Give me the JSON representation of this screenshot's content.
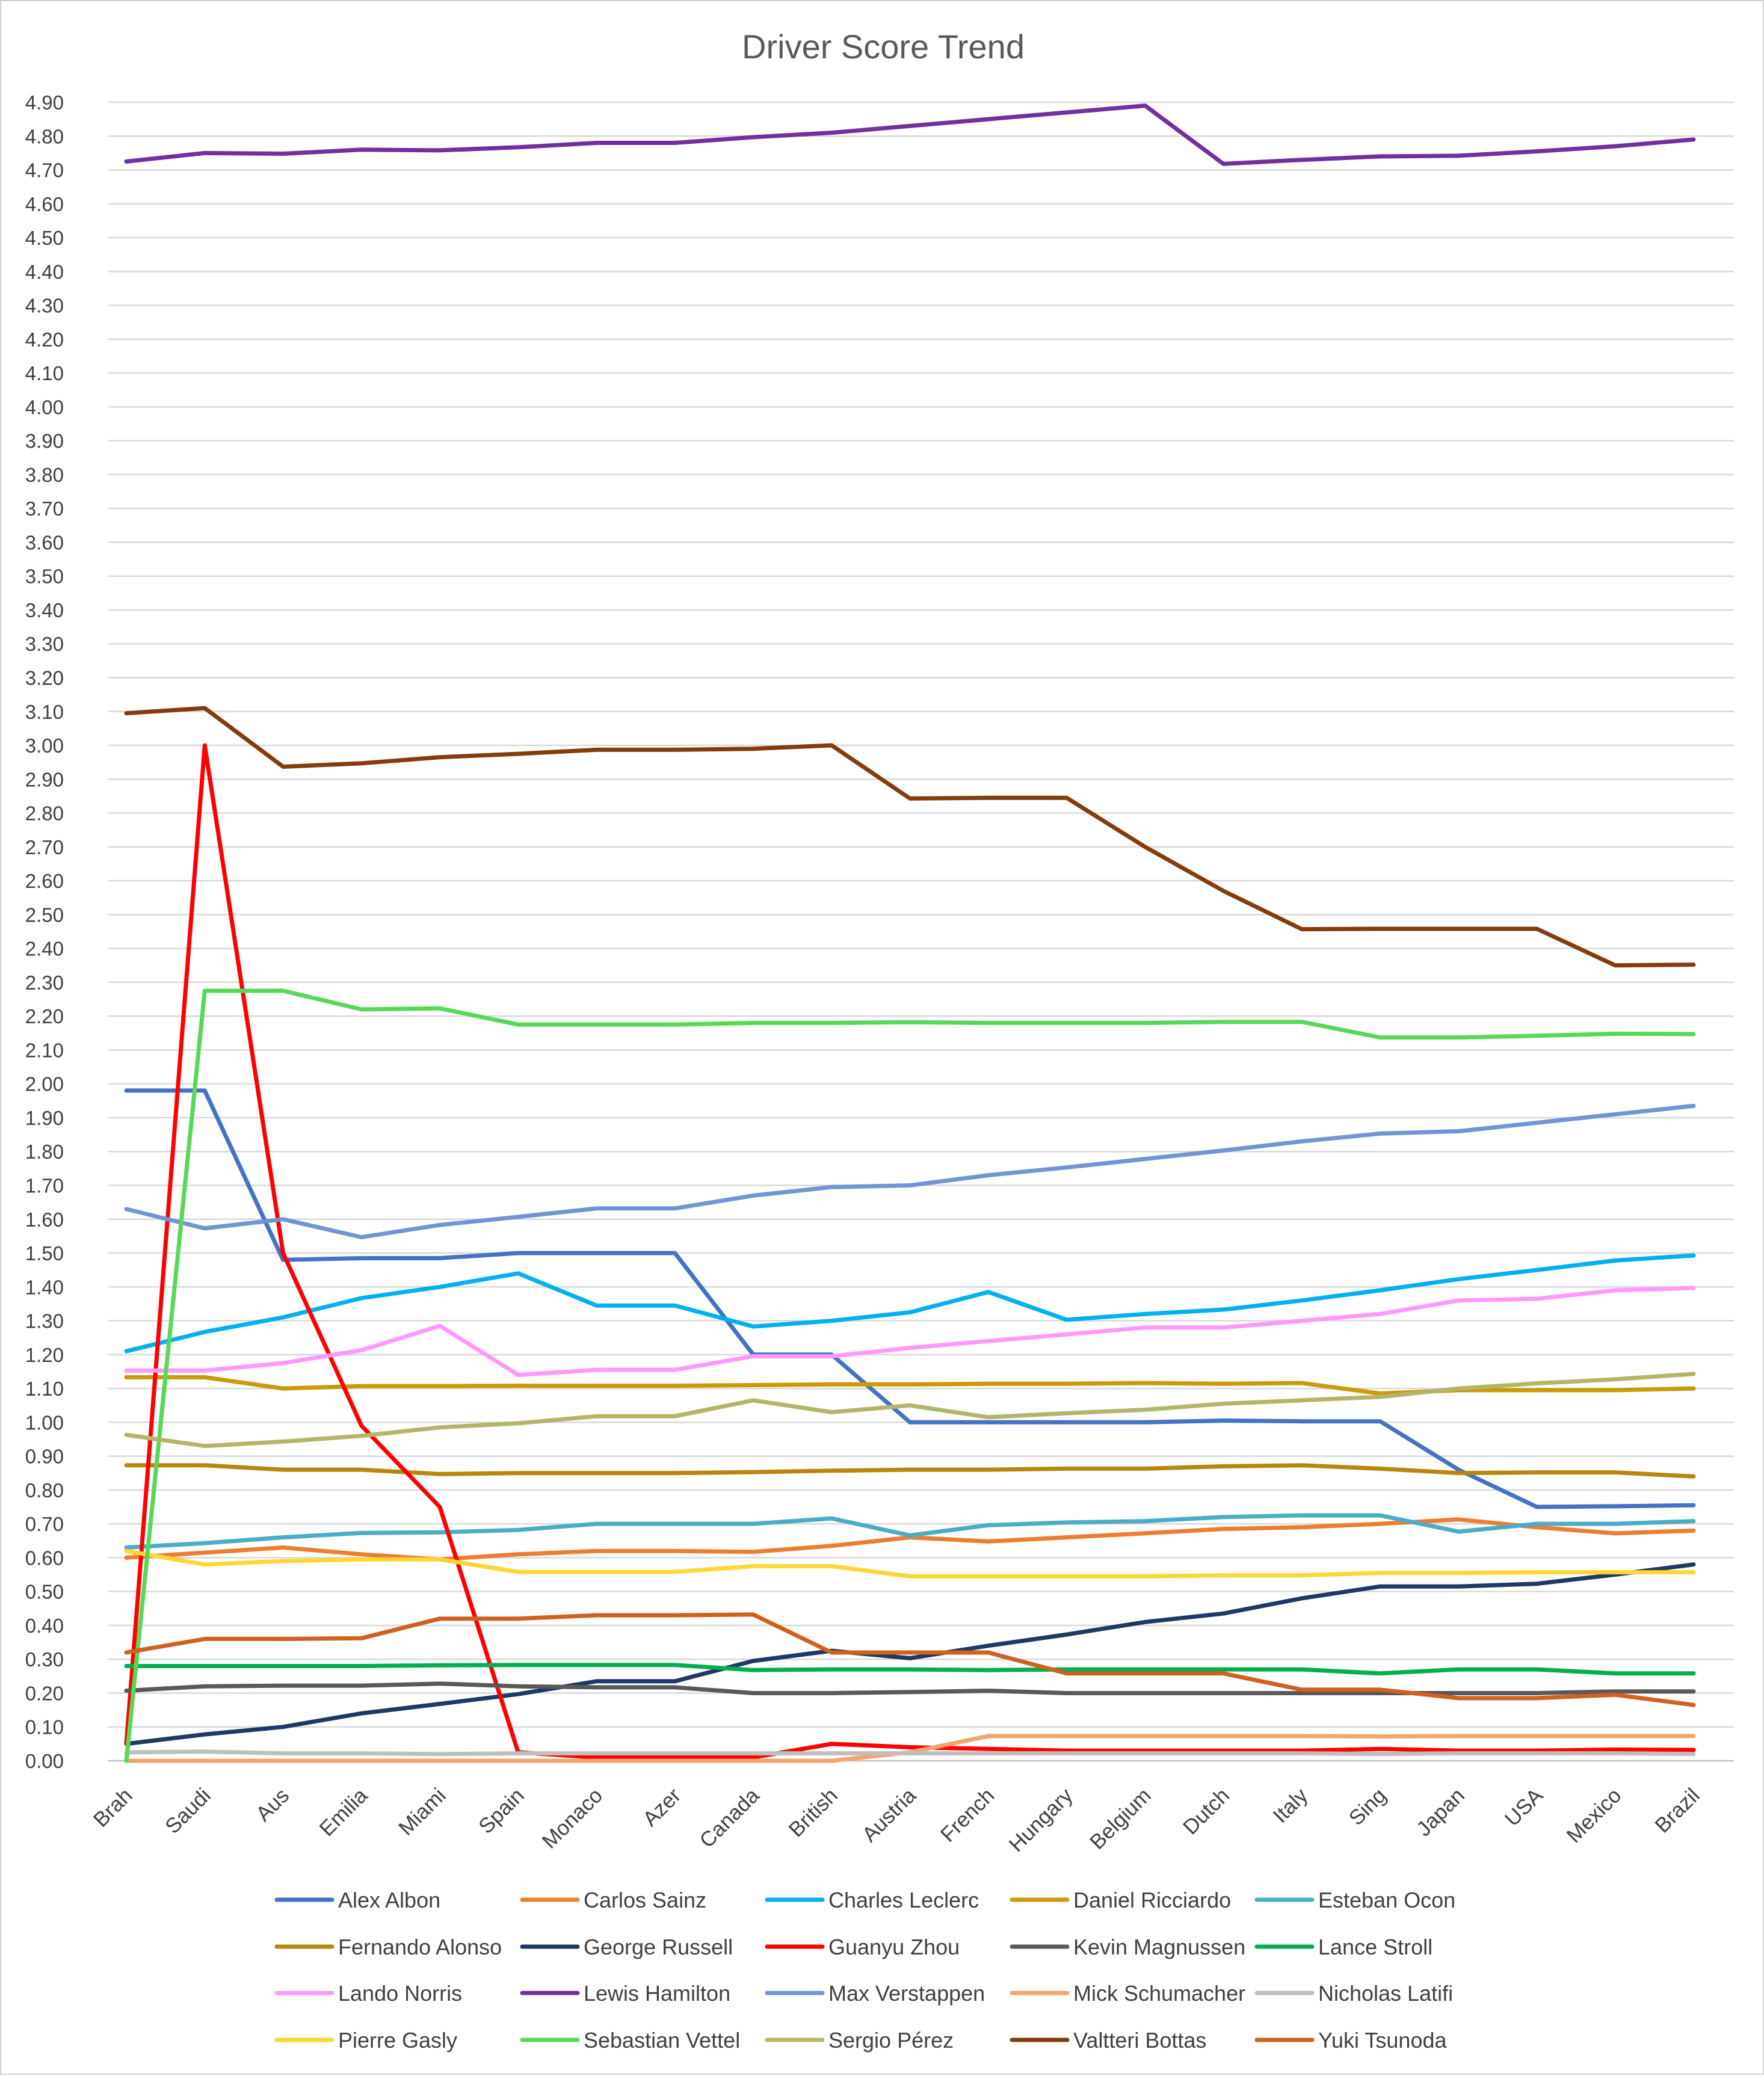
{
  "chart_data": {
    "type": "line",
    "title": "Driver Score Trend",
    "xlabel": "",
    "ylabel": "",
    "ylim": [
      0,
      4.9
    ],
    "ytick_step": 0.1,
    "ytick_format": "2 decimals",
    "grid": "horizontal",
    "legend_position": "bottom",
    "categories": [
      "Brah",
      "Saudi",
      "Aus",
      "Emilia",
      "Miami",
      "Spain",
      "Monaco",
      "Azer",
      "Canada",
      "British",
      "Austria",
      "French",
      "Hungary",
      "Belgium",
      "Dutch",
      "Italy",
      "Sing",
      "Japan",
      "USA",
      "Mexico",
      "Brazil"
    ],
    "series": [
      {
        "name": "Alex Albon",
        "color": "#4472c4",
        "values": [
          1.98,
          1.98,
          1.48,
          1.485,
          1.485,
          1.5,
          1.5,
          1.5,
          1.2,
          1.2,
          1.0,
          1.0,
          1.0,
          1.0,
          1.005,
          1.003,
          1.003,
          0.86,
          0.75,
          0.752,
          0.755
        ]
      },
      {
        "name": "Carlos Sainz",
        "color": "#ed7d31",
        "values": [
          0.6,
          0.615,
          0.63,
          0.61,
          0.595,
          0.61,
          0.62,
          0.62,
          0.617,
          0.635,
          0.66,
          0.648,
          0.66,
          0.672,
          0.685,
          0.69,
          0.7,
          0.713,
          0.69,
          0.672,
          0.68
        ]
      },
      {
        "name": "Charles Leclerc",
        "color": "#00b0f0",
        "values": [
          1.21,
          1.267,
          1.31,
          1.367,
          1.4,
          1.44,
          1.345,
          1.345,
          1.283,
          1.3,
          1.325,
          1.385,
          1.303,
          1.32,
          1.333,
          1.36,
          1.39,
          1.423,
          1.45,
          1.478,
          1.493
        ]
      },
      {
        "name": "Daniel Ricciardo",
        "color": "#cc9a06",
        "values": [
          1.133,
          1.133,
          1.1,
          1.107,
          1.107,
          1.108,
          1.108,
          1.108,
          1.11,
          1.112,
          1.112,
          1.114,
          1.114,
          1.116,
          1.114,
          1.116,
          1.085,
          1.095,
          1.095,
          1.095,
          1.1
        ]
      },
      {
        "name": "Esteban Ocon",
        "color": "#4bacc6",
        "values": [
          0.63,
          0.643,
          0.66,
          0.673,
          0.675,
          0.682,
          0.7,
          0.7,
          0.7,
          0.716,
          0.666,
          0.696,
          0.704,
          0.708,
          0.72,
          0.725,
          0.725,
          0.677,
          0.7,
          0.7,
          0.708
        ]
      },
      {
        "name": "Fernando Alonso",
        "color": "#b8860b",
        "values": [
          0.873,
          0.873,
          0.86,
          0.86,
          0.847,
          0.85,
          0.85,
          0.85,
          0.853,
          0.857,
          0.86,
          0.86,
          0.863,
          0.863,
          0.87,
          0.873,
          0.863,
          0.85,
          0.852,
          0.852,
          0.84
        ]
      },
      {
        "name": "George Russell",
        "color": "#1f3864",
        "values": [
          0.05,
          0.078,
          0.1,
          0.14,
          0.168,
          0.197,
          0.235,
          0.235,
          0.295,
          0.325,
          0.303,
          0.34,
          0.373,
          0.41,
          0.435,
          0.48,
          0.515,
          0.515,
          0.523,
          0.55,
          0.58
        ]
      },
      {
        "name": "Guanyu Zhou",
        "color": "#ff0000",
        "values": [
          0.05,
          3.0,
          1.5,
          0.99,
          0.75,
          0.025,
          0.01,
          0.01,
          0.01,
          0.05,
          0.04,
          0.035,
          0.03,
          0.03,
          0.03,
          0.03,
          0.035,
          0.03,
          0.03,
          0.033,
          0.032
        ]
      },
      {
        "name": "Kevin Magnussen",
        "color": "#595959",
        "values": [
          0.207,
          0.22,
          0.222,
          0.222,
          0.228,
          0.22,
          0.217,
          0.217,
          0.2,
          0.2,
          0.203,
          0.207,
          0.2,
          0.2,
          0.2,
          0.2,
          0.2,
          0.2,
          0.2,
          0.205,
          0.205
        ]
      },
      {
        "name": "Lance Stroll",
        "color": "#00b050",
        "values": [
          0.28,
          0.28,
          0.28,
          0.28,
          0.282,
          0.283,
          0.283,
          0.283,
          0.268,
          0.27,
          0.27,
          0.268,
          0.27,
          0.27,
          0.27,
          0.27,
          0.258,
          0.27,
          0.27,
          0.258,
          0.258
        ]
      },
      {
        "name": "Lando Norris",
        "color": "#ff99ff",
        "values": [
          1.153,
          1.153,
          1.175,
          1.213,
          1.285,
          1.14,
          1.155,
          1.155,
          1.195,
          1.195,
          1.22,
          1.24,
          1.26,
          1.28,
          1.28,
          1.3,
          1.32,
          1.36,
          1.365,
          1.39,
          1.397
        ]
      },
      {
        "name": "Lewis Hamilton",
        "color": "#7030a0",
        "values": [
          4.725,
          4.75,
          4.748,
          4.76,
          4.758,
          4.767,
          4.78,
          4.78,
          4.797,
          4.81,
          4.83,
          4.85,
          4.87,
          4.89,
          4.718,
          4.73,
          4.74,
          4.742,
          4.755,
          4.77,
          4.79
        ]
      },
      {
        "name": "Max Verstappen",
        "color": "#7094d4",
        "values": [
          1.63,
          1.573,
          1.6,
          1.547,
          1.583,
          1.607,
          1.632,
          1.632,
          1.67,
          1.695,
          1.7,
          1.73,
          1.753,
          1.778,
          1.803,
          1.83,
          1.853,
          1.86,
          1.885,
          1.91,
          1.935
        ]
      },
      {
        "name": "Mick Schumacher",
        "color": "#f4a46c",
        "values": [
          0,
          0,
          0,
          0,
          0,
          0,
          0,
          0,
          0,
          0,
          0.025,
          0.073,
          0.073,
          0.073,
          0.073,
          0.073,
          0.072,
          0.073,
          0.073,
          0.073,
          0.073
        ]
      },
      {
        "name": "Nicholas Latifi",
        "color": "#bfbfbf",
        "values": [
          0.025,
          0.027,
          0.022,
          0.022,
          0.02,
          0.022,
          0.022,
          0.022,
          0.022,
          0.022,
          0.022,
          0.022,
          0.022,
          0.022,
          0.022,
          0.022,
          0.02,
          0.022,
          0.022,
          0.022,
          0.02
        ]
      },
      {
        "name": "Pierre Gasly",
        "color": "#ffd633",
        "values": [
          0.62,
          0.58,
          0.59,
          0.595,
          0.595,
          0.558,
          0.558,
          0.558,
          0.575,
          0.575,
          0.545,
          0.545,
          0.545,
          0.545,
          0.548,
          0.548,
          0.555,
          0.555,
          0.557,
          0.557,
          0.557
        ]
      },
      {
        "name": "Sebastian Vettel",
        "color": "#57d957",
        "values": [
          0,
          2.275,
          2.275,
          2.22,
          2.223,
          2.175,
          2.175,
          2.175,
          2.18,
          2.18,
          2.182,
          2.18,
          2.18,
          2.18,
          2.183,
          2.183,
          2.137,
          2.137,
          2.142,
          2.148,
          2.147
        ]
      },
      {
        "name": "Sergio Pérez",
        "color": "#b5b56a",
        "values": [
          0.963,
          0.93,
          0.943,
          0.96,
          0.985,
          0.997,
          1.018,
          1.018,
          1.065,
          1.03,
          1.05,
          1.015,
          1.027,
          1.037,
          1.055,
          1.065,
          1.075,
          1.1,
          1.115,
          1.127,
          1.143
        ]
      },
      {
        "name": "Valtteri Bottas",
        "color": "#843c0c",
        "values": [
          3.095,
          3.11,
          2.937,
          2.947,
          2.965,
          2.975,
          2.987,
          2.987,
          2.99,
          3.0,
          2.843,
          2.845,
          2.845,
          2.7,
          2.57,
          2.457,
          2.458,
          2.458,
          2.458,
          2.35,
          2.352
        ]
      },
      {
        "name": "Yuki Tsunoda",
        "color": "#d0611f",
        "values": [
          0.32,
          0.36,
          0.36,
          0.362,
          0.42,
          0.42,
          0.43,
          0.43,
          0.432,
          0.32,
          0.32,
          0.32,
          0.258,
          0.258,
          0.258,
          0.21,
          0.21,
          0.185,
          0.185,
          0.195,
          0.165
        ]
      }
    ]
  }
}
